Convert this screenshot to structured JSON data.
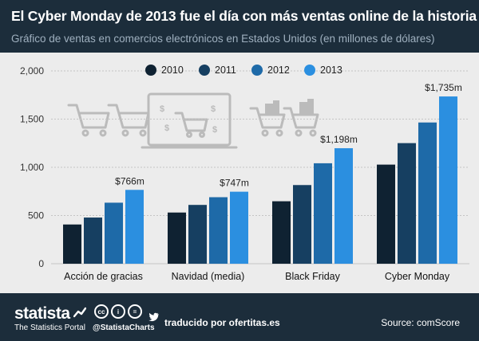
{
  "header": {
    "title": "El Cyber Monday de 2013 fue el día con más ventas online de la historia",
    "subtitle": "Gráfico de ventas en comercios electrónicos en Estados Unidos (en millones de dólares)"
  },
  "chart_data": {
    "type": "bar",
    "categories": [
      "Acción de gracias",
      "Navidad (media)",
      "Black Friday",
      "Cyber Monday"
    ],
    "series": [
      {
        "name": "2010",
        "color": "#0f2232",
        "values": [
          407,
          531,
          648,
          1028
        ]
      },
      {
        "name": "2011",
        "color": "#163f61",
        "values": [
          479,
          610,
          816,
          1251
        ]
      },
      {
        "name": "2012",
        "color": "#1e6aa8",
        "values": [
          633,
          690,
          1042,
          1465
        ]
      },
      {
        "name": "2013",
        "color": "#2b8fe0",
        "values": [
          766,
          747,
          1198,
          1735
        ]
      }
    ],
    "data_labels": [
      "$766m",
      "$747m",
      "$1,198m",
      "$1,735m"
    ],
    "ylim": [
      0,
      2000
    ],
    "yticks": [
      0,
      500,
      1000,
      1500,
      2000
    ],
    "ytick_labels": [
      "0",
      "500",
      "1,000",
      "1,500",
      "2,000"
    ],
    "grid": true,
    "legend": "top-center",
    "title": "El Cyber Monday de 2013 fue el día con más ventas online de la historia",
    "xlabel": "",
    "ylabel": ""
  },
  "footer": {
    "brand": "statista",
    "brand_sub": "The Statistics Portal",
    "handle": "@StatistaCharts",
    "translated": "traducido por ofertitas.es",
    "source": "Source: comScore",
    "cc_icons": [
      "cc",
      "i",
      "="
    ]
  },
  "colors": {
    "header_bg": "#1c2d3b",
    "plot_bg": "#ececec",
    "illustration": "#bbbbbb"
  }
}
